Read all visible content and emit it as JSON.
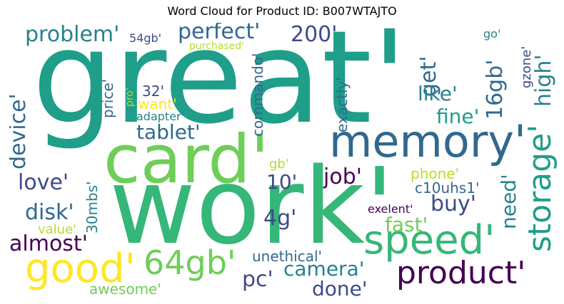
{
  "title": "Word Cloud for Product ID: B007WTAJTO",
  "words": {
    "great": "great'",
    "work": "work'",
    "card": "card'",
    "memory": "memory'",
    "speed": "speed'",
    "good": "good'",
    "product": "product'",
    "gb64": "64gb'",
    "storage": "storage'",
    "perfect": "perfect'",
    "problem": "problem'",
    "n200": "200'",
    "get": "get'",
    "high": "high'",
    "gb16": "16gb'",
    "like": "like'",
    "fine": "fine'",
    "tablet": "tablet'",
    "device": "device'",
    "love": "love'",
    "disk": "disk'",
    "almost": "almost'",
    "value": "value'",
    "mbs30": "30mbs'",
    "n10": "10'",
    "g4": "4g'",
    "job": "job'",
    "buy": "buy'",
    "fast": "fast'",
    "need": "need'",
    "camera": "camera'",
    "pc": "pc'",
    "done": "done'",
    "unethical": "unethical'",
    "awesome": "awesome'",
    "phone": "phone'",
    "c10uhs1": "c10uhs1'",
    "exelent": "exelent'",
    "gb": "gb'",
    "want": "want'",
    "adapter": "adapter'",
    "n32": "32'",
    "price": "price'",
    "pro": "pro'",
    "commando": "commando'",
    "exactly": "exactly'",
    "gzone": "gzone'",
    "go": "go'",
    "gb54": "54gb'",
    "purchased": "purchased'"
  },
  "colors": {
    "dark_purple": "#440154",
    "indigo": "#3e4a89",
    "blue": "#31688e",
    "teal": "#26828e",
    "green_teal": "#1f9e89",
    "green": "#35b779",
    "lime": "#6ece58",
    "yellow_green": "#b5de2b",
    "yellow": "#fde725"
  }
}
